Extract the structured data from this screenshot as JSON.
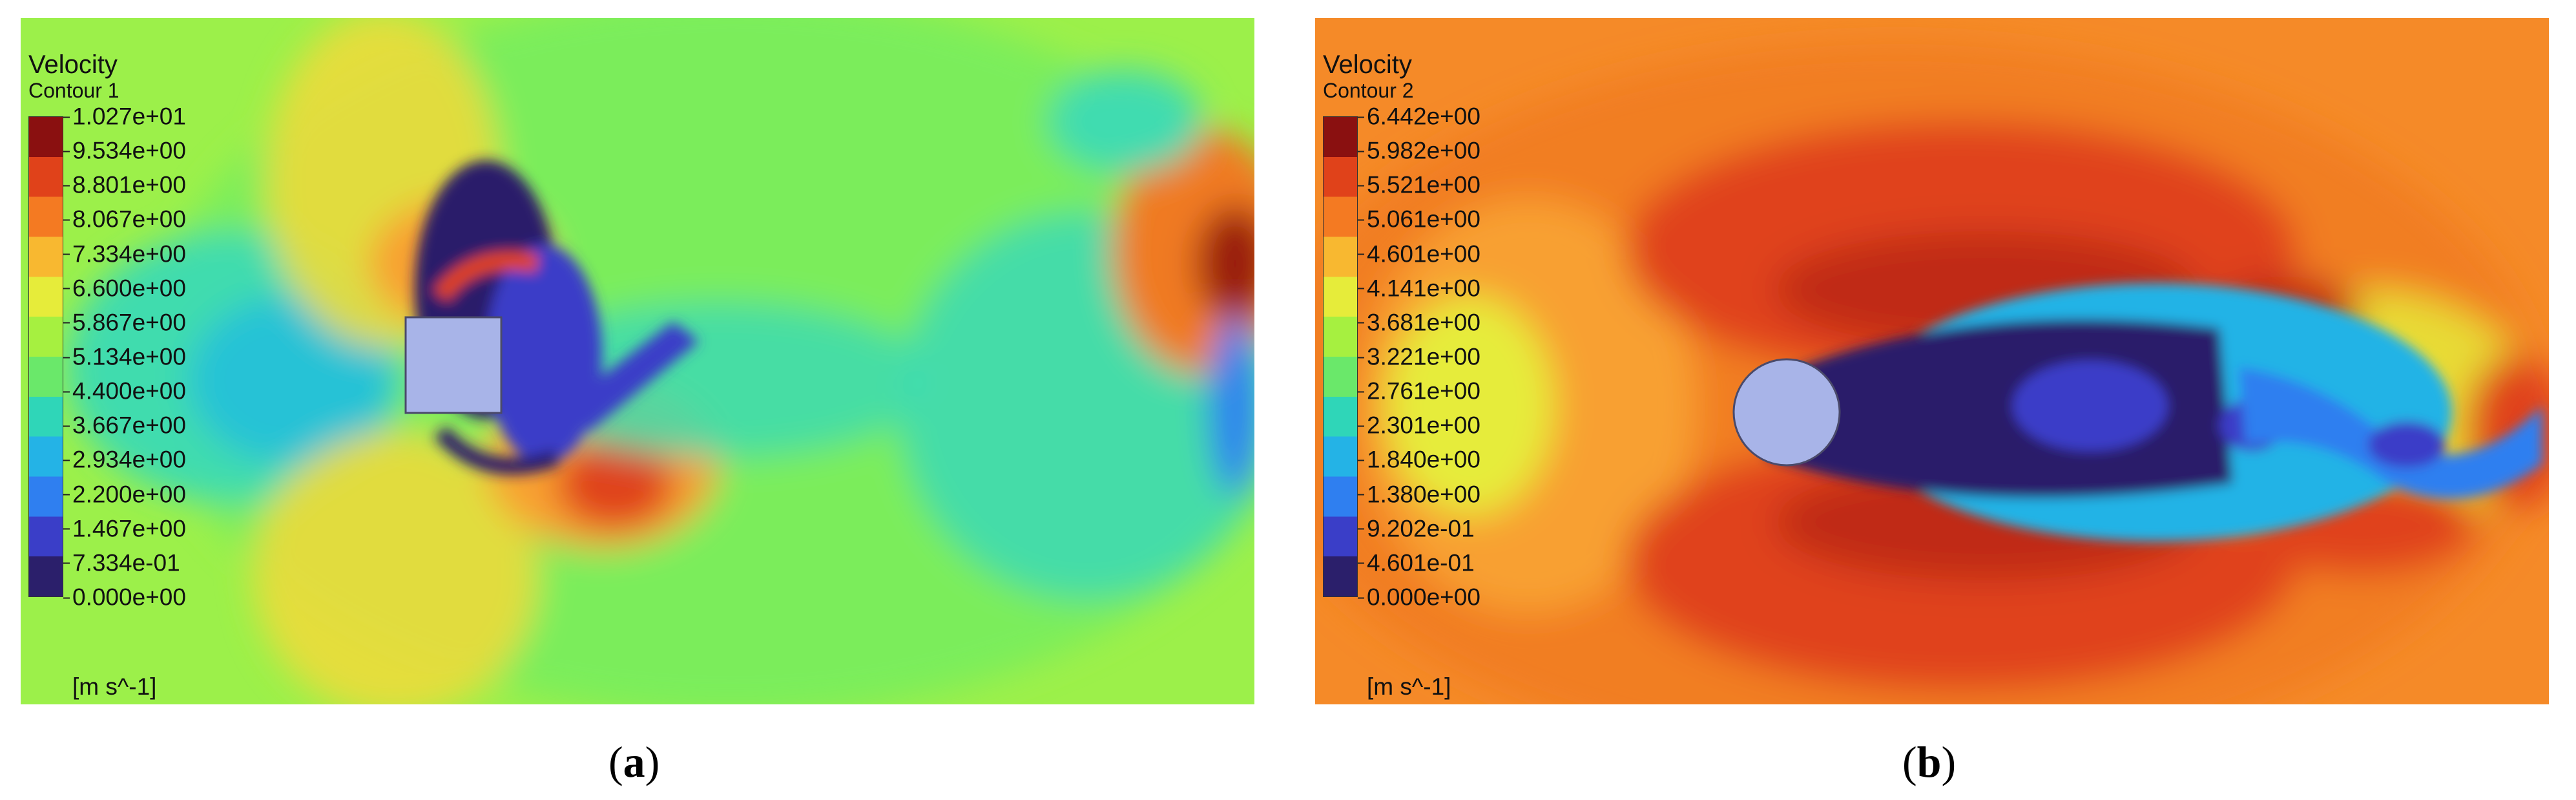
{
  "panels": [
    {
      "id": "a",
      "legend_title": "Velocity",
      "legend_subtitle": "Contour 1",
      "colorbar_ticks": [
        "1.027e+01",
        "9.534e+00",
        "8.801e+00",
        "8.067e+00",
        "7.334e+00",
        "6.600e+00",
        "5.867e+00",
        "5.134e+00",
        "4.400e+00",
        "3.667e+00",
        "2.934e+00",
        "2.200e+00",
        "1.467e+00",
        "7.334e-01",
        "0.000e+00"
      ],
      "unit": "[m s^-1]",
      "caption_letter": "a",
      "obstacle": "square-obstacle",
      "colors": {
        "background": "#9cf04a",
        "obstacle": "#a8b4e8"
      }
    },
    {
      "id": "b",
      "legend_title": "Velocity",
      "legend_subtitle": "Contour 2",
      "colorbar_ticks": [
        "6.442e+00",
        "5.982e+00",
        "5.521e+00",
        "5.061e+00",
        "4.601e+00",
        "4.141e+00",
        "3.681e+00",
        "3.221e+00",
        "2.761e+00",
        "2.301e+00",
        "1.840e+00",
        "1.380e+00",
        "9.202e-01",
        "4.601e-01",
        "0.000e+00"
      ],
      "unit": "[m s^-1]",
      "caption_letter": "b",
      "obstacle": "circular-obstacle",
      "colors": {
        "background": "#f58a28",
        "obstacle": "#a8b4e8"
      }
    }
  ],
  "colormap": [
    "#2b1f6b",
    "#3a3ec8",
    "#2f7ff0",
    "#24b3e6",
    "#2fd6b8",
    "#6ae86a",
    "#a6f040",
    "#e6ec3a",
    "#f8b830",
    "#f47a22",
    "#e0421a",
    "#8a1010"
  ]
}
